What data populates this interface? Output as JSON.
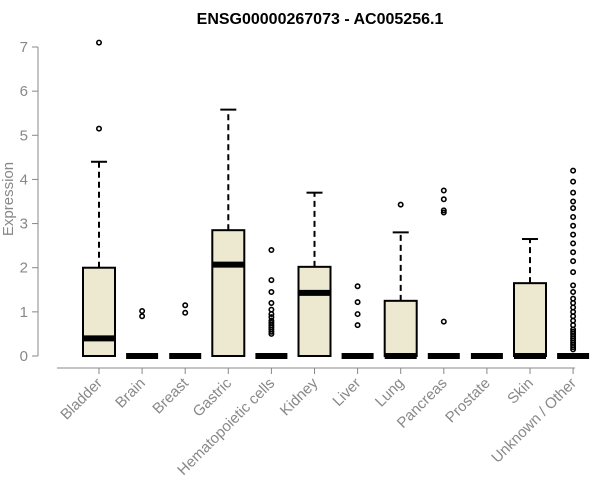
{
  "chart_data": {
    "type": "boxplot",
    "title": "ENSG00000267073 - AC005256.1",
    "xlabel": "",
    "ylabel": "Expression",
    "ylim": [
      0,
      7
    ],
    "yticks": [
      0,
      1,
      2,
      3,
      4,
      5,
      6,
      7
    ],
    "grid": false,
    "legend": "none",
    "colors": {
      "box_fill": "#ede8d0",
      "box_stroke": "#000000",
      "outlier": "#000000",
      "axis": "#888888"
    },
    "categories": [
      "Bladder",
      "Brain",
      "Breast",
      "Gastric",
      "Hematopoietic cells",
      "Kidney",
      "Liver",
      "Lung",
      "Pancreas",
      "Prostate",
      "Skin",
      "Unknown / Other"
    ],
    "boxes": [
      {
        "category": "Bladder",
        "whisker_low": 0,
        "q1": 0,
        "median": 0.4,
        "q3": 2.0,
        "whisker_high": 4.4,
        "outliers": [
          5.15,
          7.1
        ]
      },
      {
        "category": "Brain",
        "whisker_low": 0,
        "q1": 0,
        "median": 0,
        "q3": 0,
        "whisker_high": 0,
        "outliers": [
          0.9,
          1.02
        ]
      },
      {
        "category": "Breast",
        "whisker_low": 0,
        "q1": 0,
        "median": 0,
        "q3": 0,
        "whisker_high": 0,
        "outliers": [
          0.98,
          1.15
        ]
      },
      {
        "category": "Gastric",
        "whisker_low": 0,
        "q1": 0,
        "median": 2.07,
        "q3": 2.85,
        "whisker_high": 5.58,
        "outliers": []
      },
      {
        "category": "Hematopoietic cells",
        "whisker_low": 0,
        "q1": 0,
        "median": 0,
        "q3": 0,
        "whisker_high": 0,
        "outliers": [
          0.5,
          0.55,
          0.6,
          0.65,
          0.7,
          0.75,
          0.8,
          0.88,
          0.95,
          1.05,
          1.2,
          1.45,
          1.72,
          2.4
        ]
      },
      {
        "category": "Kidney",
        "whisker_low": 0,
        "q1": 0,
        "median": 1.43,
        "q3": 2.02,
        "whisker_high": 3.7,
        "outliers": []
      },
      {
        "category": "Liver",
        "whisker_low": 0,
        "q1": 0,
        "median": 0,
        "q3": 0,
        "whisker_high": 0,
        "outliers": [
          0.7,
          0.95,
          1.22,
          1.58
        ]
      },
      {
        "category": "Lung",
        "whisker_low": 0,
        "q1": 0,
        "median": 0,
        "q3": 1.25,
        "whisker_high": 2.8,
        "outliers": [
          3.43
        ]
      },
      {
        "category": "Pancreas",
        "whisker_low": 0,
        "q1": 0,
        "median": 0,
        "q3": 0,
        "whisker_high": 0,
        "outliers": [
          0.78,
          3.25,
          3.3,
          3.55,
          3.75
        ]
      },
      {
        "category": "Prostate",
        "whisker_low": 0,
        "q1": 0,
        "median": 0,
        "q3": 0,
        "whisker_high": 0,
        "outliers": []
      },
      {
        "category": "Skin",
        "whisker_low": 0,
        "q1": 0,
        "median": 0,
        "q3": 1.65,
        "whisker_high": 2.65,
        "outliers": []
      },
      {
        "category": "Unknown / Other",
        "whisker_low": 0,
        "q1": 0,
        "median": 0,
        "q3": 0,
        "whisker_high": 0,
        "outliers": [
          0.15,
          0.2,
          0.25,
          0.3,
          0.35,
          0.4,
          0.45,
          0.5,
          0.55,
          0.6,
          0.7,
          0.8,
          0.9,
          1.0,
          1.1,
          1.2,
          1.3,
          1.45,
          1.6,
          1.9,
          2.15,
          2.35,
          2.55,
          2.75,
          2.95,
          3.15,
          3.35,
          3.5,
          3.7,
          3.95,
          4.2
        ]
      }
    ]
  }
}
